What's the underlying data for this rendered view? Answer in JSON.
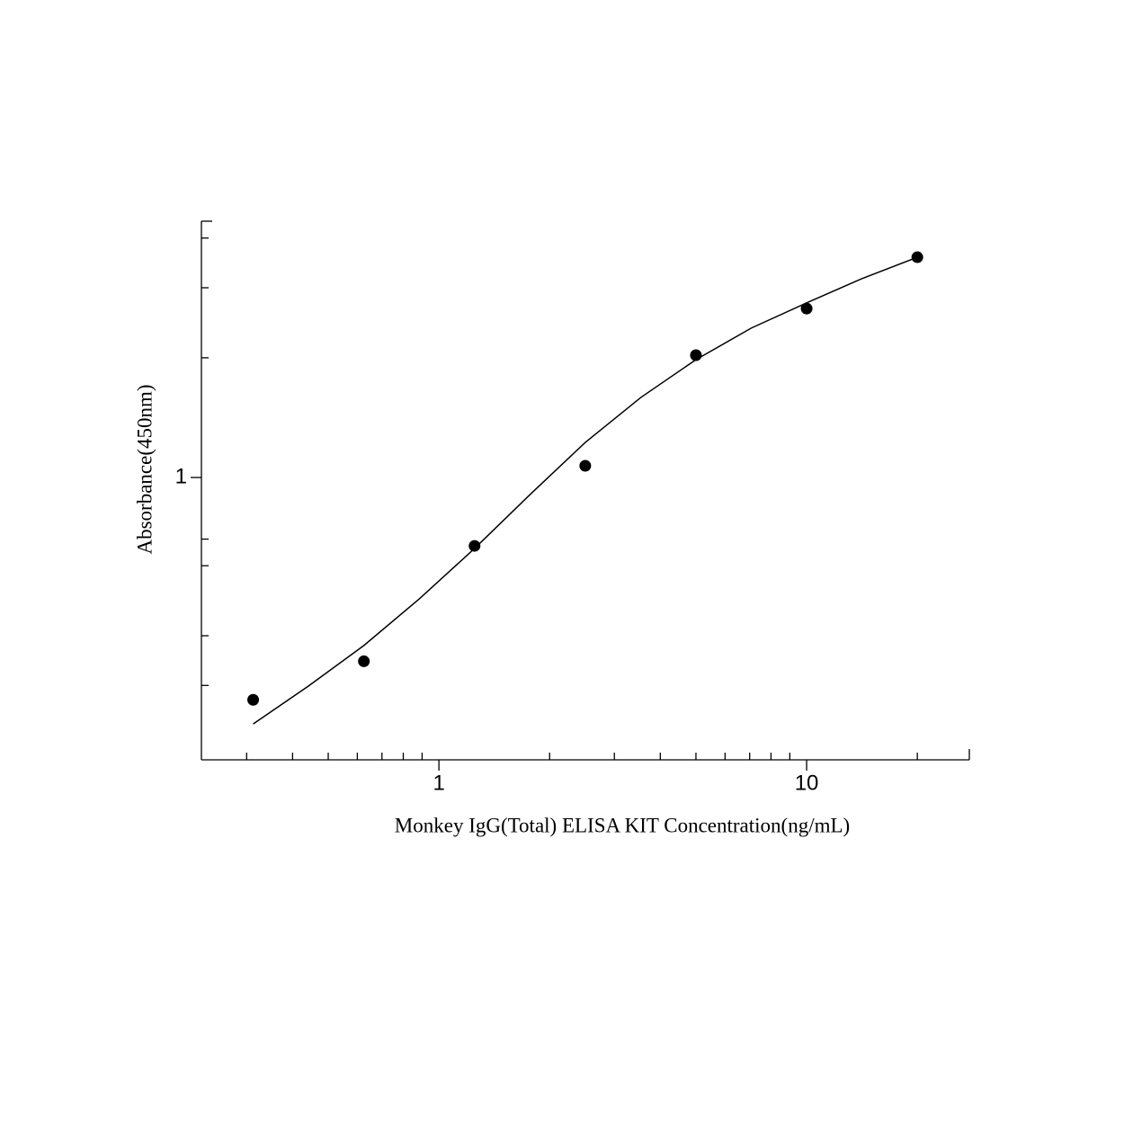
{
  "chart_data": {
    "type": "scatter",
    "x_label": "Monkey IgG(Total) ELISA KIT Concentration(ng/mL)",
    "y_label": "Absorbance(450nm)",
    "x_scale": "log",
    "y_scale": "log",
    "xlim": [
      0.226,
      27.7
    ],
    "ylim": [
      0.195,
      4.41
    ],
    "xticks": [
      1,
      10
    ],
    "yticks": [
      1
    ],
    "xminorticks": [
      0.3,
      0.4,
      0.5,
      0.6,
      0.7,
      0.8,
      0.9,
      2,
      3,
      4,
      5,
      6,
      7,
      8,
      9,
      20
    ],
    "yminorticks": [
      0.3,
      0.4,
      0.6,
      0.7,
      2,
      3,
      4
    ],
    "series": [
      {
        "color": "#000000",
        "x": [
          0.3125,
          0.625,
          1.25,
          2.5,
          5,
          10,
          20
        ],
        "values": [
          0.276,
          0.345,
          0.673,
          1.07,
          2.03,
          2.66,
          3.58
        ]
      }
    ],
    "curve": {
      "color": "#000000",
      "x": [
        0.3125,
        0.442,
        0.625,
        0.884,
        1.25,
        1.77,
        2.5,
        3.54,
        5,
        7.07,
        10,
        14.1,
        20
      ],
      "values": [
        0.24,
        0.299,
        0.378,
        0.495,
        0.663,
        0.906,
        1.225,
        1.589,
        1.978,
        2.375,
        2.748,
        3.16,
        3.58
      ]
    }
  }
}
